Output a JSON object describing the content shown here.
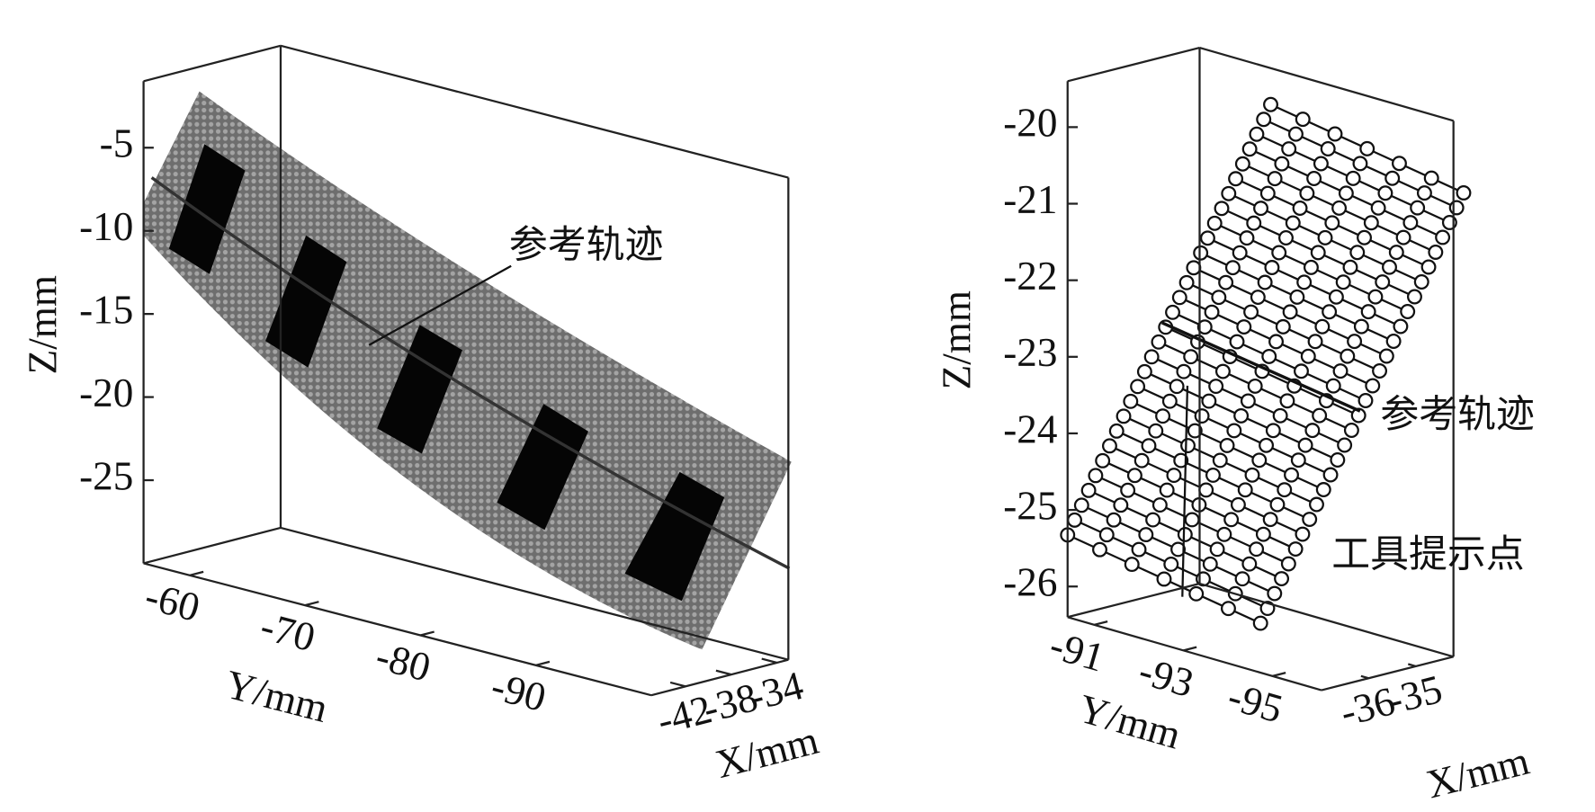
{
  "chart_data": [
    {
      "type": "scatter3d",
      "xlabel": "X/mm",
      "ylabel": "Y/mm",
      "zlabel": "Z/mm",
      "xlim": [
        -45,
        -33
      ],
      "ylim": [
        -56,
        -100
      ],
      "zlim": [
        -30,
        -1
      ],
      "xticks": [
        -42,
        -38,
        -34
      ],
      "yticks": [
        -60,
        -70,
        -80,
        -90
      ],
      "zticks": [
        -5,
        -10,
        -15,
        -20,
        -25
      ],
      "annotations": [
        "参考轨迹"
      ]
    },
    {
      "type": "scatter3d",
      "xlabel": "X/mm",
      "ylabel": "Y/mm",
      "zlabel": "Z/mm",
      "xlim": [
        -37,
        -34.2
      ],
      "ylim": [
        -90.4,
        -96.1
      ],
      "zlim": [
        -26.4,
        -19.4
      ],
      "xticks": [
        -36,
        -35
      ],
      "yticks": [
        -91,
        -93,
        -95
      ],
      "zticks": [
        -20,
        -21,
        -22,
        -23,
        -24,
        -25,
        -26
      ],
      "annotations": [
        "参考轨迹",
        "工具提示点"
      ]
    }
  ]
}
